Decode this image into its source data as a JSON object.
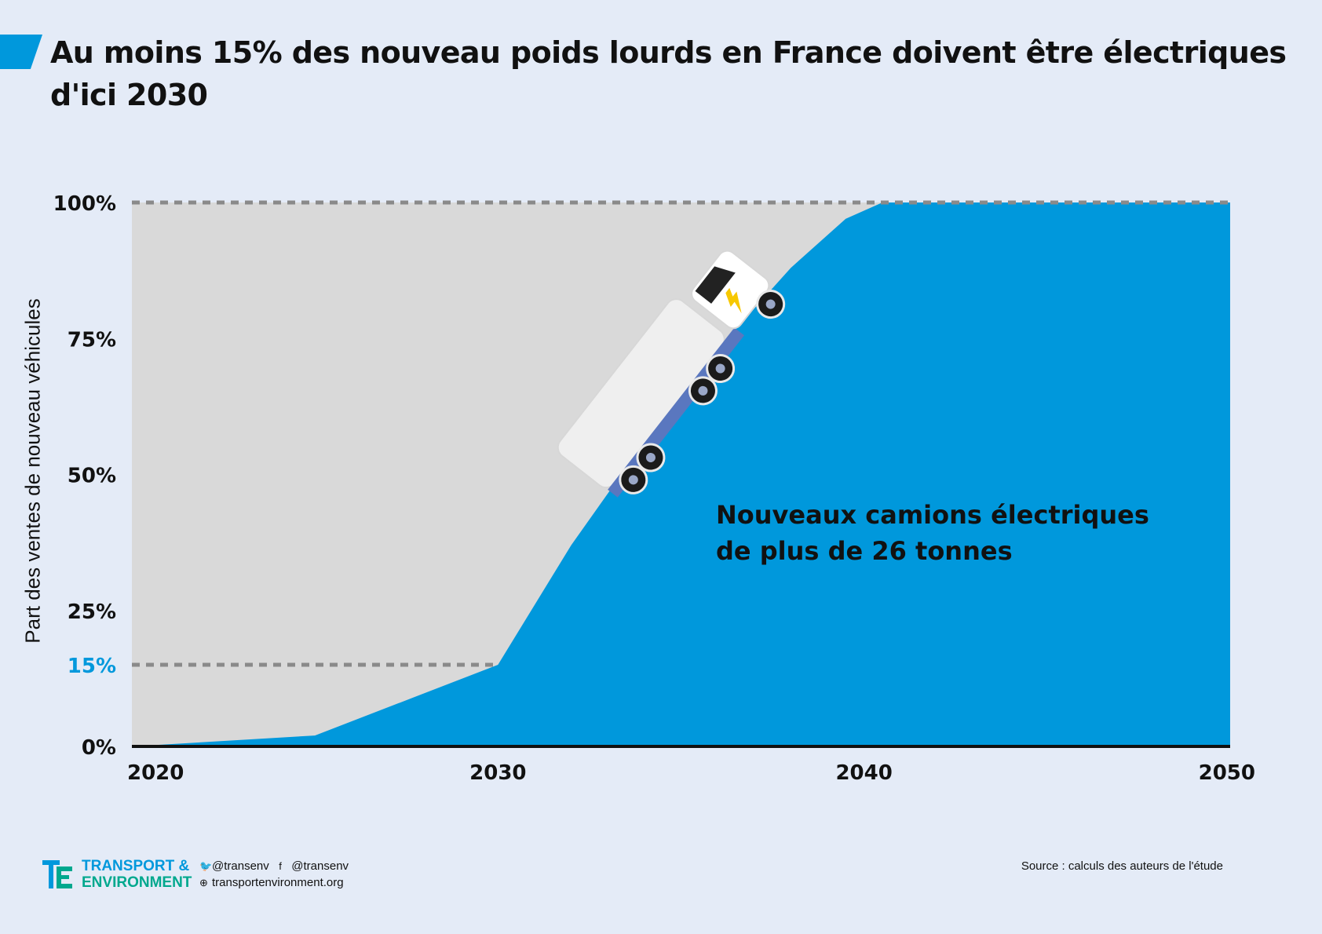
{
  "title": "Au moins 15% des nouveau poids lourds en France doivent être électriques d'ici 2030",
  "chart_data": {
    "type": "area",
    "title": "Au moins 15% des nouveau poids lourds en France doivent être électriques d'ici 2030",
    "ylabel": "Part des ventes de nouveau véhicules",
    "xlabel": "",
    "xlim": [
      2020,
      2050
    ],
    "ylim": [
      0,
      100
    ],
    "x_ticks": [
      "2020",
      "2030",
      "2040",
      "2050"
    ],
    "y_ticks": [
      {
        "value": 100,
        "label": "100%"
      },
      {
        "value": 75,
        "label": "75%"
      },
      {
        "value": 50,
        "label": "50%"
      },
      {
        "value": 25,
        "label": "25%"
      },
      {
        "value": 15,
        "label": "15%"
      },
      {
        "value": 0,
        "label": "0%"
      }
    ],
    "highlight_tick": "15%",
    "reference_lines": [
      100,
      15
    ],
    "series": [
      {
        "name": "Nouveaux camions électriques de plus de 26 tonnes",
        "x": [
          2020,
          2025,
          2030,
          2032,
          2034,
          2036,
          2038,
          2039.5,
          2040.5,
          2050
        ],
        "values": [
          0,
          2,
          15,
          37,
          56,
          73,
          88,
          97,
          100,
          100
        ]
      }
    ],
    "annotation": [
      "Nouveaux camions électriques",
      "de plus de 26 tonnes"
    ],
    "colors": {
      "area": "#0098dc",
      "background_area": "#d9d9d9",
      "highlight": "#0098dc",
      "dashed": "#8a8a8a"
    },
    "grid": false
  },
  "footer": {
    "brand_line1": "TRANSPORT &",
    "brand_line2": "ENVIRONMENT",
    "twitter": "@transenv",
    "facebook": "@transenv",
    "website": "transportenvironment.org",
    "source": "Source : calculs des auteurs de l'étude",
    "icons": [
      "twitter-icon",
      "facebook-icon",
      "globe-icon"
    ]
  }
}
